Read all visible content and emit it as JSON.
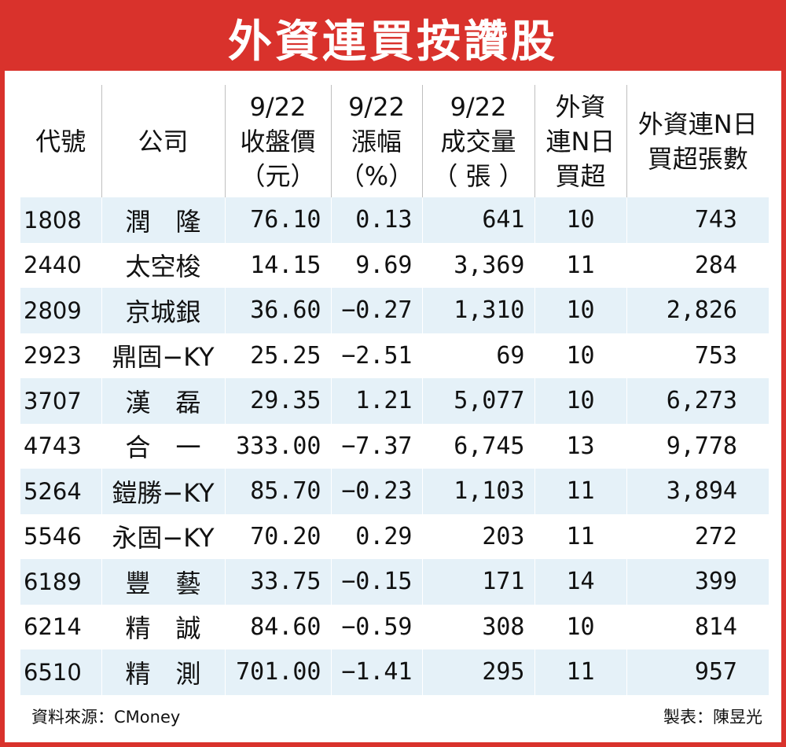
{
  "title": "外資連買按讚股",
  "headers": [
    "代號",
    "公司",
    "9/22\n收盤價\n（元）",
    "9/22\n漲幅\n（%）",
    "9/22\n成交量\n（ 張 ）",
    "外資\n連N日\n買超",
    "外資連N日\n買超張數"
  ],
  "rows": [
    {
      "code": "1808",
      "company": "潤　隆",
      "close": "76.10",
      "change": "0.13",
      "volume": "641",
      "days": "10",
      "total": "743"
    },
    {
      "code": "2440",
      "company": "太空梭",
      "close": "14.15",
      "change": "9.69",
      "volume": "3,369",
      "days": "11",
      "total": "284"
    },
    {
      "code": "2809",
      "company": "京城銀",
      "close": "36.60",
      "change": "−0.27",
      "volume": "1,310",
      "days": "10",
      "total": "2,826"
    },
    {
      "code": "2923",
      "company": "鼎固−KY",
      "close": "25.25",
      "change": "−2.51",
      "volume": "69",
      "days": "10",
      "total": "753"
    },
    {
      "code": "3707",
      "company": "漢　磊",
      "close": "29.35",
      "change": "1.21",
      "volume": "5,077",
      "days": "10",
      "total": "6,273"
    },
    {
      "code": "4743",
      "company": "合　一",
      "close": "333.00",
      "change": "−7.37",
      "volume": "6,745",
      "days": "13",
      "total": "9,778"
    },
    {
      "code": "5264",
      "company": "鎧勝−KY",
      "close": "85.70",
      "change": "−0.23",
      "volume": "1,103",
      "days": "11",
      "total": "3,894"
    },
    {
      "code": "5546",
      "company": "永固−KY",
      "close": "70.20",
      "change": "0.29",
      "volume": "203",
      "days": "11",
      "total": "272"
    },
    {
      "code": "6189",
      "company": "豐　藝",
      "close": "33.75",
      "change": "−0.15",
      "volume": "171",
      "days": "14",
      "total": "399"
    },
    {
      "code": "6214",
      "company": "精　誠",
      "close": "84.60",
      "change": "−0.59",
      "volume": "308",
      "days": "10",
      "total": "814"
    },
    {
      "code": "6510",
      "company": "精　測",
      "close": "701.00",
      "change": "−1.41",
      "volume": "295",
      "days": "11",
      "total": "957"
    }
  ],
  "footer": {
    "source": "資料來源：CMoney",
    "maker": "製表：陳昱光"
  },
  "colors": {
    "accent": "#d9322c",
    "stripe": "#e5f1f8"
  }
}
